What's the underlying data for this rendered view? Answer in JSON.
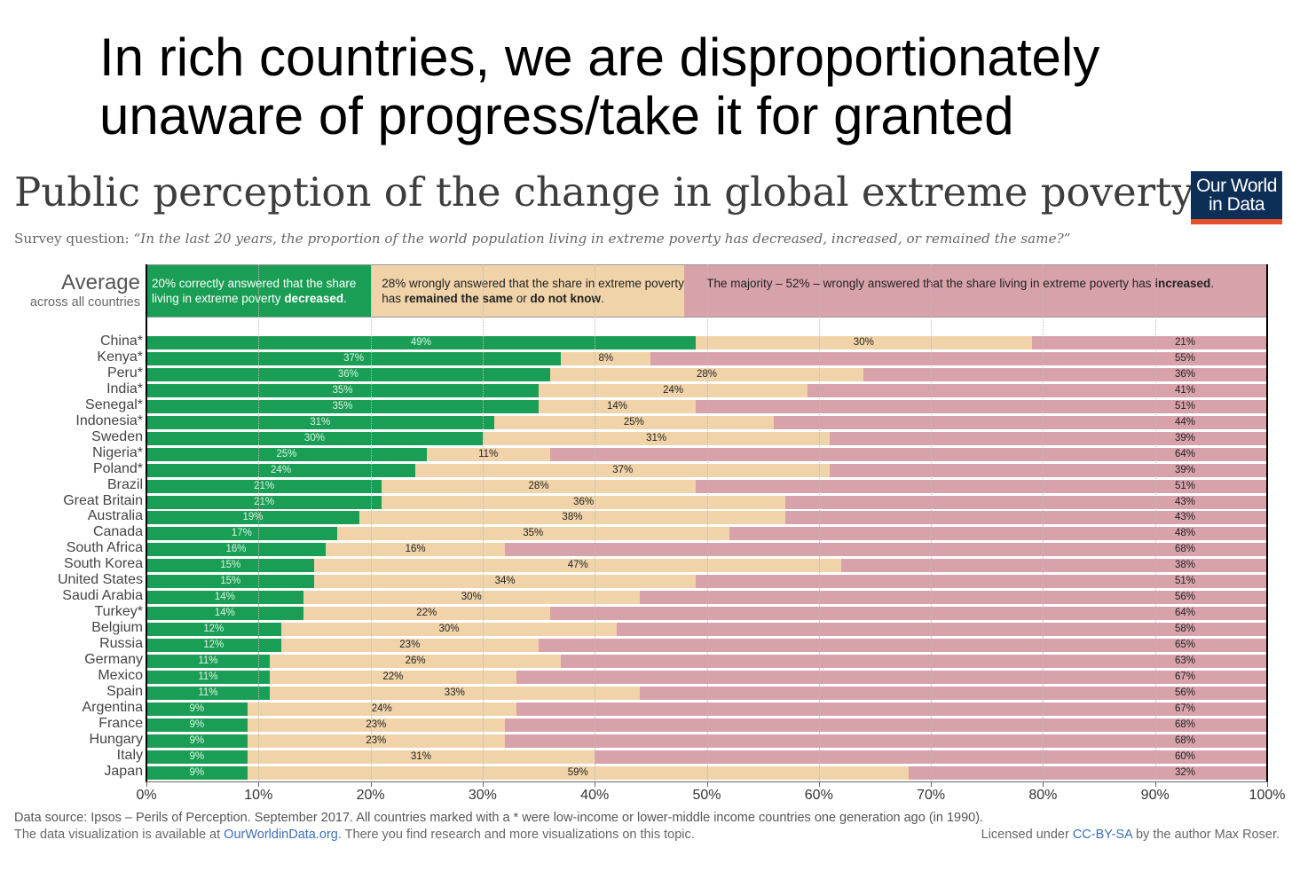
{
  "headline": "In rich countries, we are disproportionately unaware of progress/take it for granted",
  "chart_title": "Public perception of the change in global extreme poverty",
  "logo": {
    "line1": "Our World",
    "line2": "in Data"
  },
  "survey": {
    "prefix": "Survey question: ",
    "question": "“In the last 20 years, the proportion of the world population living in extreme poverty has decreased, increased, or remained the same?”"
  },
  "average": {
    "label": "Average",
    "sublabel": "across all countries",
    "decreased": {
      "value": 20,
      "text_a": "20% correctly answered that the share living in extreme poverty ",
      "text_b": "decreased",
      "text_c": "."
    },
    "same": {
      "value": 28,
      "text_a": "28% wrongly answered that the share in extreme poverty has ",
      "text_b": "remained the same",
      "text_c": " or ",
      "text_d": "do not know",
      "text_e": "."
    },
    "increased": {
      "value": 52,
      "text_a": "The majority – 52% – wrongly answered that the share living in extreme poverty has ",
      "text_b": "increased",
      "text_c": "."
    }
  },
  "colors": {
    "decreased": "#1a9e55",
    "same": "#f0d3a8",
    "increased": "#d8a2ab",
    "logo_bg": "#0d2e57",
    "logo_accent": "#e4502b"
  },
  "chart_data": {
    "type": "bar",
    "stacked": true,
    "orientation": "horizontal",
    "xlim": [
      0,
      100
    ],
    "x_ticks": [
      "0%",
      "10%",
      "20%",
      "30%",
      "40%",
      "50%",
      "60%",
      "70%",
      "80%",
      "90%",
      "100%"
    ],
    "categories": [
      "China*",
      "Kenya*",
      "Peru*",
      "India*",
      "Senegal*",
      "Indonesia*",
      "Sweden",
      "Nigeria*",
      "Poland*",
      "Brazil",
      "Great Britain",
      "Australia",
      "Canada",
      "South Africa",
      "South Korea",
      "United States",
      "Saudi Arabia",
      "Turkey*",
      "Belgium",
      "Russia",
      "Germany",
      "Mexico",
      "Spain",
      "Argentina",
      "France",
      "Hungary",
      "Italy",
      "Japan"
    ],
    "decreased": [
      49,
      37,
      36,
      35,
      35,
      31,
      30,
      25,
      24,
      21,
      21,
      19,
      17,
      16,
      15,
      15,
      14,
      14,
      12,
      12,
      11,
      11,
      11,
      9,
      9,
      9,
      9,
      9
    ],
    "same": [
      30,
      8,
      28,
      24,
      14,
      25,
      31,
      11,
      37,
      28,
      36,
      38,
      35,
      16,
      47,
      34,
      30,
      22,
      30,
      23,
      26,
      22,
      33,
      24,
      23,
      23,
      31,
      59
    ],
    "increased": [
      21,
      55,
      36,
      41,
      51,
      44,
      39,
      64,
      39,
      51,
      43,
      43,
      48,
      68,
      38,
      51,
      56,
      64,
      58,
      65,
      63,
      67,
      56,
      67,
      68,
      68,
      60,
      32
    ]
  },
  "footer": {
    "source": "Data source: Ipsos – Perils of Perception. September 2017. All countries marked with a * were low-income or lower-middle income countries one generation ago (in 1990).",
    "viz_a": "The data visualization is available at ",
    "viz_link": "OurWorldinData.org.",
    "viz_b": " There you find research and more visualizations on this topic.",
    "license_a": "Licensed under ",
    "license_link": "CC-BY-SA",
    "license_b": " by the author Max Roser."
  }
}
